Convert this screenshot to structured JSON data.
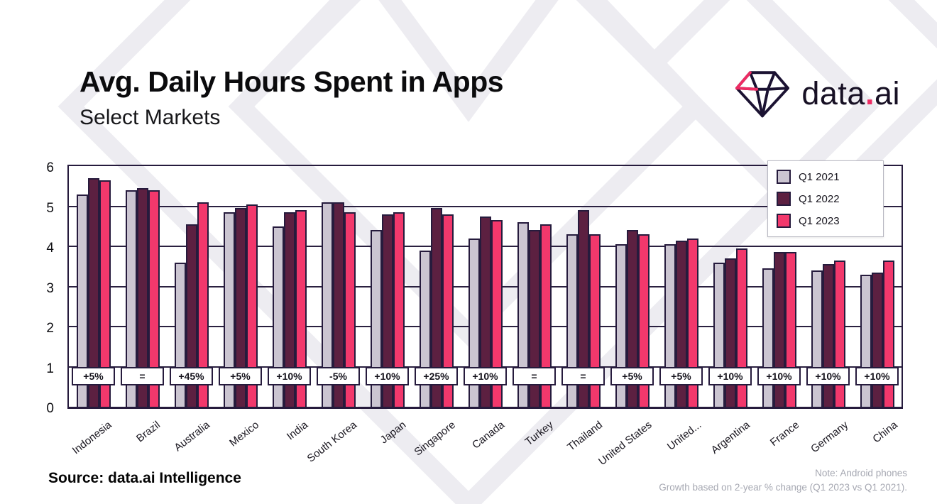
{
  "header": {
    "title": "Avg. Daily Hours Spent in Apps",
    "subtitle": "Select Markets"
  },
  "logo": {
    "text_before_dot": "data",
    "dot": ".",
    "text_after_dot": "ai"
  },
  "footer": {
    "source": "Source: data.ai Intelligence",
    "note_line1": "Note: Android phones",
    "note_line2": "Growth based on 2-year % change (Q1 2023 vs Q1 2021)."
  },
  "chart_data": {
    "type": "bar",
    "title": "Avg. Daily Hours Spent in Apps",
    "subtitle": "Select Markets",
    "categories": [
      "Indonesia",
      "Brazil",
      "Australia",
      "Mexico",
      "India",
      "South Korea",
      "Japan",
      "Singapore",
      "Canada",
      "Turkey",
      "Thailand",
      "United States",
      "United...",
      "Argentina",
      "France",
      "Germany",
      "China"
    ],
    "growth_labels": [
      "+5%",
      "=",
      "+45%",
      "+5%",
      "+10%",
      "-5%",
      "+10%",
      "+25%",
      "+10%",
      "=",
      "=",
      "+5%",
      "+5%",
      "+10%",
      "+10%",
      "+10%",
      "+10%"
    ],
    "series": [
      {
        "name": "Q1 2021",
        "color": "#cbc5d1",
        "values": [
          5.3,
          5.4,
          3.6,
          4.85,
          4.5,
          5.1,
          4.4,
          3.9,
          4.2,
          4.6,
          4.3,
          4.05,
          4.05,
          3.6,
          3.45,
          3.4,
          3.3
        ]
      },
      {
        "name": "Q1 2022",
        "color": "#5c2041",
        "values": [
          5.7,
          5.45,
          4.55,
          4.95,
          4.85,
          5.1,
          4.8,
          4.95,
          4.75,
          4.4,
          4.9,
          4.4,
          4.15,
          3.7,
          3.85,
          3.55,
          3.35
        ]
      },
      {
        "name": "Q1 2023",
        "color": "#f2386c",
        "values": [
          5.65,
          5.4,
          5.1,
          5.05,
          4.9,
          4.85,
          4.85,
          4.8,
          4.65,
          4.55,
          4.3,
          4.3,
          4.2,
          3.95,
          3.85,
          3.65,
          3.65
        ]
      }
    ],
    "ylim": [
      0,
      6
    ],
    "yticks": [
      0,
      1,
      2,
      3,
      4,
      5,
      6
    ],
    "grid": true,
    "legend_position": "top-right",
    "outline_color": "#261b3d",
    "accent_pink": "#ee2b63"
  }
}
